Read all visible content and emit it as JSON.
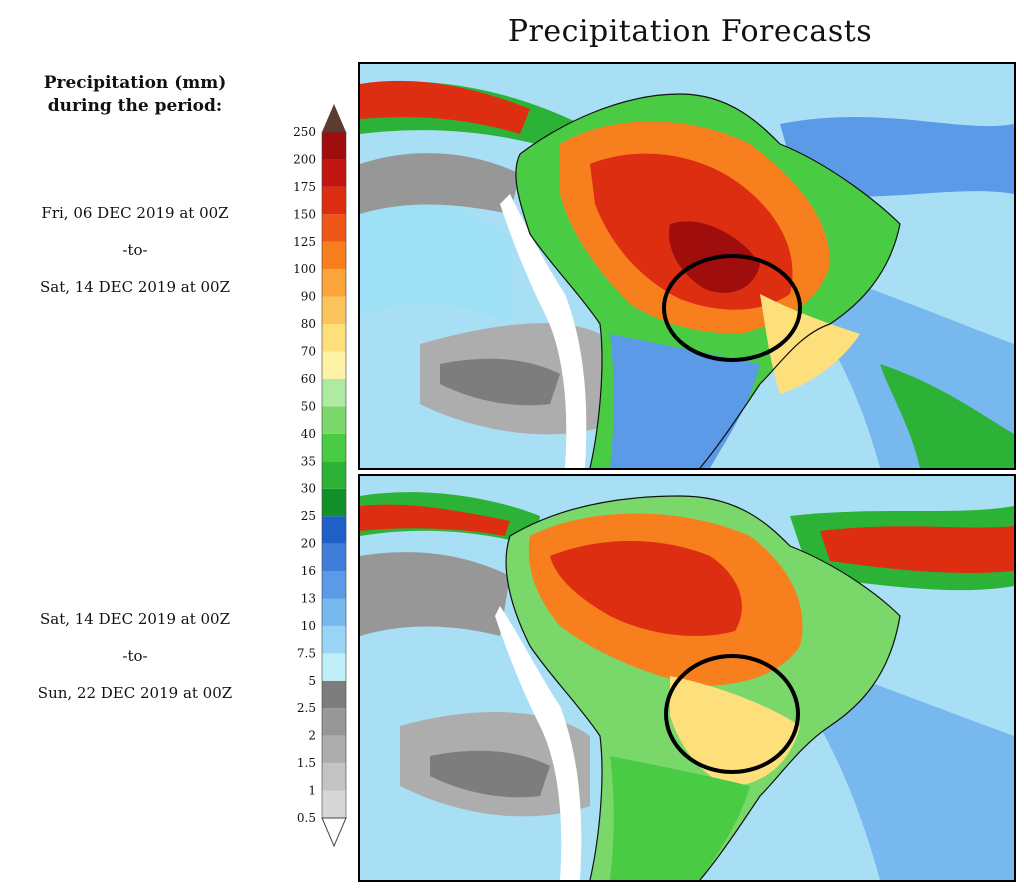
{
  "title": "Precipitation Forecasts",
  "legend": {
    "heading_line1": "Precipitation (mm)",
    "heading_line2": "during the period:",
    "levels": [
      "0.5",
      "1",
      "1.5",
      "2",
      "2.5",
      "5",
      "7.5",
      "10",
      "13",
      "16",
      "20",
      "25",
      "30",
      "35",
      "40",
      "50",
      "60",
      "70",
      "80",
      "90",
      "100",
      "125",
      "150",
      "175",
      "200",
      "250"
    ],
    "colors": [
      "#d6d6d6",
      "#c3c3c3",
      "#adadad",
      "#979797",
      "#7d7d7d",
      "#bfeef8",
      "#99d6f5",
      "#77b8ee",
      "#5a9ae6",
      "#3e7ed8",
      "#1f5fc8",
      "#12902a",
      "#2cb236",
      "#4acb44",
      "#7ad86a",
      "#aeeaa2",
      "#fdf2a6",
      "#fde07c",
      "#fcc45c",
      "#fba43a",
      "#f77f1d",
      "#ef5717",
      "#de2e12",
      "#c21510",
      "#a00d0d",
      "#7d0808"
    ],
    "top_arrow_color": "#5a3d30"
  },
  "panels": [
    {
      "from": "Fri, 06 DEC 2019 at 00Z",
      "connector": "-to-",
      "to": "Sat, 14 DEC 2019 at 00Z"
    },
    {
      "from": "Sat, 14 DEC 2019 at 00Z",
      "connector": "-to-",
      "to": "Sun, 22 DEC 2019 at 00Z"
    }
  ]
}
